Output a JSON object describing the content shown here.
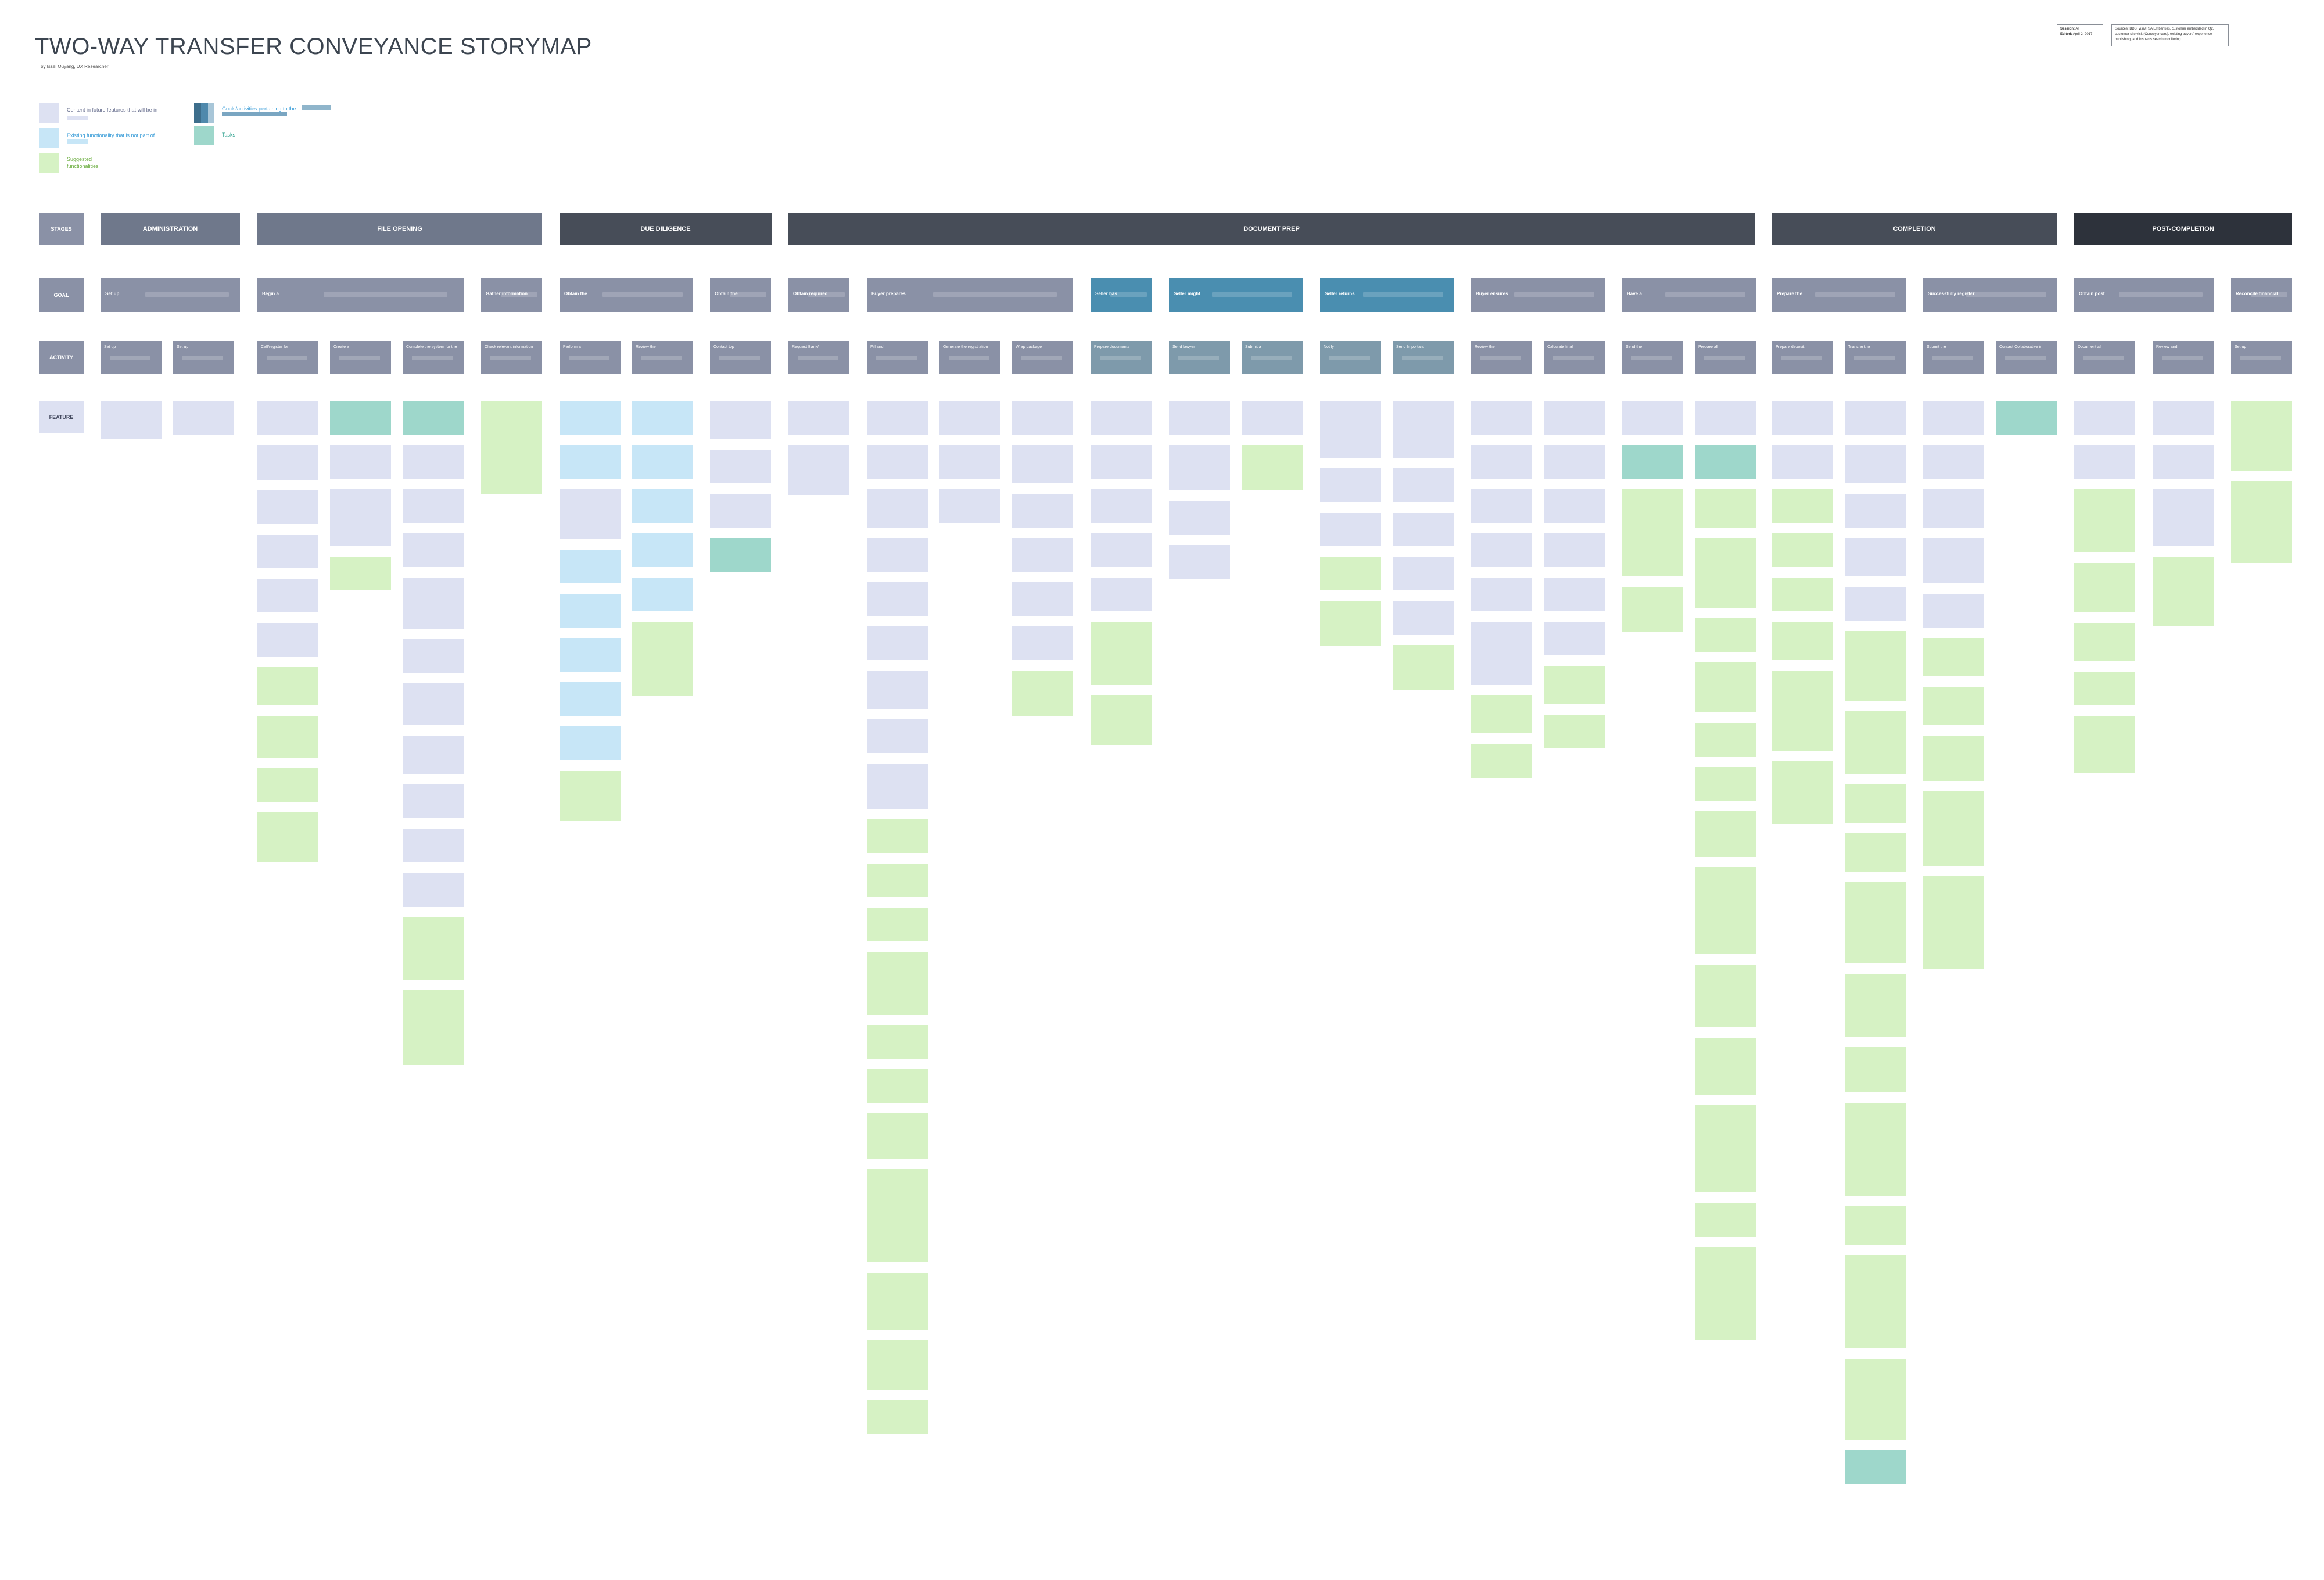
{
  "title": "TWO-WAY TRANSFER CONVEYANCE STORYMAP",
  "byline": "by Issei Ouyang, UX Researcher",
  "meta_box": {
    "session_label": "Session:",
    "session_value": "All",
    "edited_label": "Edited:",
    "edited_value": "April 2, 2017"
  },
  "notes_box": {
    "text": "Sources: BDS, visa/TSA Embankes, customer embedded in Q2, customer site visit (Conveyancers), existing buyers' experience publishing, and inspects search monitoring"
  },
  "legend": [
    {
      "key": "existing",
      "text": "Content in future features that will be in",
      "color": "#dde1f2"
    },
    {
      "key": "existing-nonpart",
      "text": "Existing functionality that is not part of",
      "color": "#c7e6f7"
    },
    {
      "key": "suggested",
      "text": "Suggested\nfunctionalities",
      "color": "#d6f2c4"
    },
    {
      "key": "goals-activities",
      "text": "Goals/activities pertaining to the",
      "color": "#4f89ac"
    },
    {
      "key": "tasks",
      "text": "Tasks",
      "color": "#9ed7cb"
    }
  ],
  "row_labels": {
    "stages": "STAGES",
    "goal": "GOAL",
    "activity": "ACTIVITY",
    "feature": "FEATURE"
  },
  "stages": [
    "ADMINISTRATION",
    "FILE OPENING",
    "DUE DILIGENCE",
    "DOCUMENT PREP",
    "COMPLETION",
    "POST-COMPLETION"
  ],
  "goals": [
    "Set up",
    "Begin a",
    "Gather information",
    "Obtain the",
    "Obtain the",
    "Obtain required",
    "Buyer prepares",
    "Seller has",
    "Seller might",
    "Seller returns",
    "Buyer ensures",
    "Have a",
    "Prepare the",
    "Successfully register",
    "Obtain post",
    "Reconcile financial"
  ],
  "activities": [
    "Set up",
    "Set up",
    "Call/register for",
    "Create a",
    "Complete the system for the",
    "Check relevant information",
    "Perform a",
    "Review the",
    "Contact top",
    "Request Bank/",
    "Fill and",
    "Generate the registration",
    "Wrap package",
    "Prepare documents",
    "Send lawyer",
    "Submit a",
    "Notify",
    "Send Important",
    "Review the",
    "Calculate final",
    "Send the",
    "Prepare all",
    "Prepare deposit",
    "Transfer the",
    "Submit the",
    "Contact Collaborative in",
    "Document all",
    "Review and",
    "Set up"
  ],
  "colors": {
    "stage_mid": "#6f788b",
    "stage_dark": "#474d58",
    "stage_darkest": "#2d323b",
    "slate": "#8a91a6",
    "teal_blue": "#4a8eb0",
    "steel": "#7e9aab",
    "existing": "#dde1f2",
    "nonpart": "#c7e6f7",
    "suggested": "#d6f2c4",
    "task": "#9ed7cb"
  }
}
